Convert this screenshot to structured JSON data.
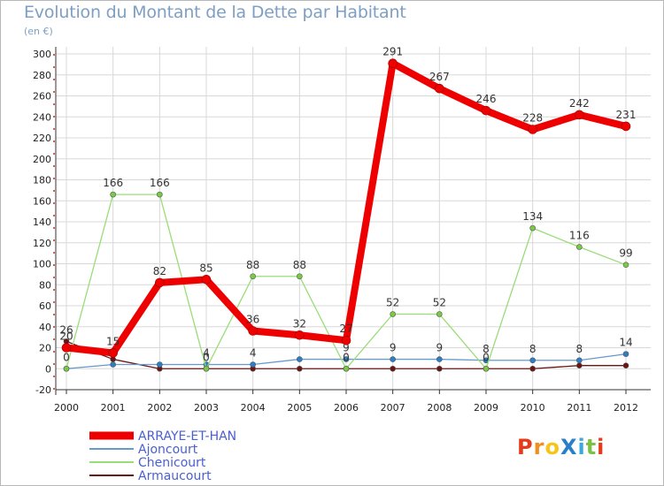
{
  "title": "Evolution du Montant de la Dette par Habitant",
  "subtitle": "(en €)",
  "logo": {
    "text": "ProXiti",
    "colors": [
      "#e53b1a",
      "#f28e1c",
      "#f7c518",
      "#2a7fc9",
      "#3aa9df",
      "#7cc143",
      "#e53b1a"
    ]
  },
  "chart_data": {
    "type": "line",
    "x": [
      "2000",
      "2001",
      "2002",
      "2003",
      "2004",
      "2005",
      "2006",
      "2007",
      "2008",
      "2009",
      "2010",
      "2011",
      "2012"
    ],
    "ylim": [
      -20,
      300
    ],
    "yticks": [
      -20,
      0,
      20,
      40,
      60,
      80,
      100,
      120,
      140,
      160,
      180,
      200,
      220,
      240,
      260,
      280,
      300
    ],
    "grid": true,
    "legend_position": "bottom-left",
    "series": [
      {
        "name": "Armaucourt",
        "color": "#6b1414",
        "width": 1.3,
        "marker": "#6b1414",
        "values": [
          26,
          9,
          0,
          0,
          0,
          0,
          0,
          0,
          0,
          0,
          0,
          3,
          3
        ],
        "labels": [
          "26",
          "",
          "",
          "",
          "",
          "",
          "",
          "",
          "",
          "",
          "",
          "",
          ""
        ]
      },
      {
        "name": "Ajoncourt",
        "color": "#6699cc",
        "width": 1.3,
        "marker": "#2b7ec8",
        "values": [
          0,
          4,
          4,
          4,
          4,
          9,
          9,
          9,
          9,
          8,
          8,
          8,
          14
        ],
        "labels": [
          "",
          "",
          "",
          "4",
          "4",
          "",
          "9",
          "9",
          "9",
          "8",
          "8",
          "8",
          "14"
        ]
      },
      {
        "name": "Chenicourt",
        "color": "#99dd77",
        "width": 1.3,
        "marker": "#77cc44",
        "values": [
          0,
          166,
          166,
          0,
          88,
          88,
          0,
          52,
          52,
          0,
          134,
          116,
          99
        ],
        "labels": [
          "0",
          "166",
          "166",
          "0",
          "88",
          "88",
          "0",
          "52",
          "52",
          "0",
          "134",
          "116",
          "99"
        ]
      },
      {
        "name": "ARRAYE-ET-HAN",
        "color": "#ee0000",
        "width": 8,
        "marker": "#ee0000",
        "values": [
          20,
          15,
          82,
          85,
          36,
          32,
          27,
          291,
          267,
          246,
          228,
          242,
          231
        ],
        "labels": [
          "20",
          "15",
          "82",
          "85",
          "36",
          "32",
          "27",
          "291",
          "267",
          "246",
          "228",
          "242",
          "231"
        ]
      }
    ],
    "legend_order": [
      "ARRAYE-ET-HAN",
      "Ajoncourt",
      "Chenicourt",
      "Armaucourt"
    ]
  }
}
